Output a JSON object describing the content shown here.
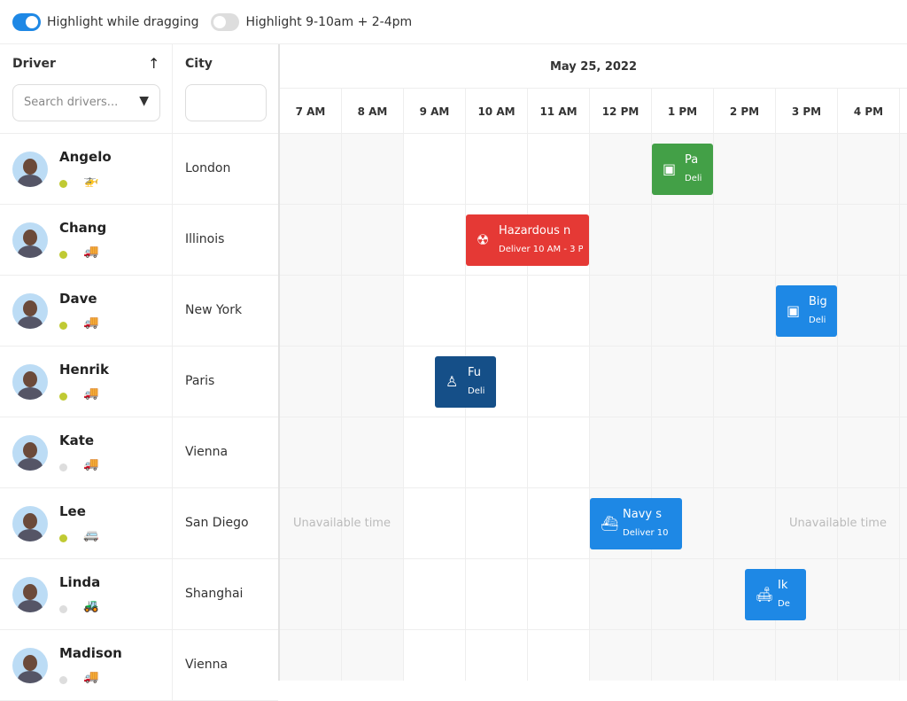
{
  "toolbar": {
    "toggles": [
      {
        "label": "Highlight while dragging",
        "on": true
      },
      {
        "label": "Highlight 9-10am + 2-4pm",
        "on": false
      }
    ]
  },
  "columns": {
    "driver": "Driver",
    "city": "City",
    "search_placeholder": "Search drivers...",
    "sort_icon": "arrow-up-icon",
    "filter_icon": "filter-icon"
  },
  "timeline": {
    "date": "May 25, 2022",
    "hours": [
      "7 AM",
      "8 AM",
      "9 AM",
      "10 AM",
      "11 AM",
      "12 PM",
      "1 PM",
      "2 PM",
      "3 PM",
      "4 PM"
    ],
    "unavailable_label": "Unavailable time"
  },
  "colors": {
    "accent": "#1e88e5",
    "online": "#c0ca33",
    "offline": "#dddddd",
    "green": "#43a047",
    "red": "#e53935",
    "navy": "#154f88",
    "blue": "#1e88e5"
  },
  "drivers": [
    {
      "name": "Angelo",
      "city": "London",
      "online": true,
      "vehicle": "helicopter-icon"
    },
    {
      "name": "Chang",
      "city": "Illinois",
      "online": true,
      "vehicle": "truck-icon"
    },
    {
      "name": "Dave",
      "city": "New York",
      "online": true,
      "vehicle": "truck-icon"
    },
    {
      "name": "Henrik",
      "city": "Paris",
      "online": true,
      "vehicle": "truck-icon"
    },
    {
      "name": "Kate",
      "city": "Vienna",
      "online": false,
      "vehicle": "truck-icon"
    },
    {
      "name": "Lee",
      "city": "San Diego",
      "online": true,
      "vehicle": "van-icon"
    },
    {
      "name": "Linda",
      "city": "Shanghai",
      "online": false,
      "vehicle": "tow-truck-icon"
    },
    {
      "name": "Madison",
      "city": "Vienna",
      "online": false,
      "vehicle": "truck-icon"
    }
  ],
  "events": [
    {
      "row": 0,
      "start": 13,
      "end": 14,
      "title": "Pa",
      "sub": "Deli",
      "color": "#43a047",
      "icon": "package-icon"
    },
    {
      "row": 1,
      "start": 10,
      "end": 12,
      "title": "Hazardous n",
      "sub": "Deliver 10 AM - 3 P",
      "color": "#e53935",
      "icon": "radiation-icon"
    },
    {
      "row": 2,
      "start": 15,
      "end": 16,
      "title": "Big",
      "sub": "Deli",
      "color": "#1e88e5",
      "icon": "package-icon"
    },
    {
      "row": 3,
      "start": 9.5,
      "end": 10.5,
      "title": "Fu",
      "sub": "Deli",
      "color": "#154f88",
      "icon": "chair-icon"
    },
    {
      "row": 5,
      "start": 12,
      "end": 13.5,
      "title": "Navy s",
      "sub": "Deliver 10",
      "color": "#1e88e5",
      "icon": "ship-icon"
    },
    {
      "row": 6,
      "start": 14.5,
      "end": 15.5,
      "title": "Ik",
      "sub": "De",
      "color": "#1e88e5",
      "icon": "sofa-icon"
    }
  ],
  "unavailable": [
    {
      "row": 5,
      "start": 7,
      "end": 9
    },
    {
      "row": 5,
      "start": 15,
      "end": 17
    }
  ]
}
